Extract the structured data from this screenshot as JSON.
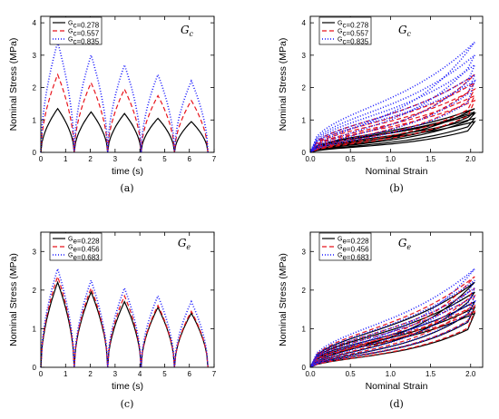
{
  "colors": {
    "black": "#000000",
    "red": "#e8141c",
    "blue": "#1a1aff"
  },
  "chart_data": [
    {
      "id": "a",
      "type": "line",
      "mode": "time",
      "caption": "(a)",
      "title": "G_c",
      "xlabel": "time (s)",
      "ylabel": "Nominal Stress (MPa)",
      "xlim": [
        0,
        7
      ],
      "ylim": [
        0,
        4.2
      ],
      "xticks": [
        0,
        1,
        2,
        3,
        4,
        5,
        6,
        7
      ],
      "yticks": [
        0,
        1,
        2,
        3,
        4
      ],
      "legend_position": "top-left",
      "series": [
        {
          "name": "G_c=0.278",
          "peaks": [
            1.35,
            1.25,
            1.2,
            1.05,
            0.95
          ],
          "color": "#000000",
          "dash": ""
        },
        {
          "name": "G_c=0.557",
          "peaks": [
            2.4,
            2.15,
            1.95,
            1.75,
            1.6
          ],
          "color": "#e8141c",
          "dash": "5,3"
        },
        {
          "name": "G_c=0.835",
          "peaks": [
            3.4,
            3.0,
            2.7,
            2.4,
            2.2
          ],
          "color": "#1a1aff",
          "dash": "1,2"
        }
      ]
    },
    {
      "id": "b",
      "type": "line",
      "mode": "strain",
      "caption": "(b)",
      "title": "G_c",
      "xlabel": "Nominal Strain",
      "ylabel": "Nominal Stress (MPa)",
      "xlim": [
        0,
        2.15
      ],
      "ylim": [
        0,
        4.2
      ],
      "xticks": [
        0,
        0.5,
        1,
        1.5,
        2
      ],
      "xticklabels": [
        "0.0",
        "0.5",
        "1.0",
        "1.5",
        "2.0"
      ],
      "yticks": [
        0,
        1,
        2,
        3,
        4
      ],
      "legend_position": "top-left",
      "series": [
        {
          "name": "G_c=0.278",
          "peaks": [
            1.35,
            1.25,
            1.2,
            1.05,
            0.95
          ],
          "color": "#000000",
          "dash": ""
        },
        {
          "name": "G_c=0.557",
          "peaks": [
            2.4,
            2.15,
            1.95,
            1.75,
            1.6
          ],
          "color": "#e8141c",
          "dash": "5,3"
        },
        {
          "name": "G_c=0.835",
          "peaks": [
            3.4,
            3.0,
            2.7,
            2.4,
            2.2
          ],
          "color": "#1a1aff",
          "dash": "1,2"
        }
      ]
    },
    {
      "id": "c",
      "type": "line",
      "mode": "time",
      "caption": "(c)",
      "title": "G_e",
      "xlabel": "time (s)",
      "ylabel": "Nominal Stress (MPa)",
      "xlim": [
        0,
        7
      ],
      "ylim": [
        0,
        3.5
      ],
      "xticks": [
        0,
        1,
        2,
        3,
        4,
        5,
        6,
        7
      ],
      "yticks": [
        0,
        1,
        2,
        3
      ],
      "legend_position": "top-left",
      "series": [
        {
          "name": "G_e=0.228",
          "peaks": [
            2.2,
            1.95,
            1.7,
            1.55,
            1.4
          ],
          "color": "#000000",
          "dash": ""
        },
        {
          "name": "G_e=0.456",
          "peaks": [
            2.35,
            2.05,
            1.85,
            1.6,
            1.45
          ],
          "color": "#e8141c",
          "dash": "5,3"
        },
        {
          "name": "G_e=0.683",
          "peaks": [
            2.55,
            2.25,
            2.05,
            1.85,
            1.7
          ],
          "color": "#1a1aff",
          "dash": "1,2"
        }
      ]
    },
    {
      "id": "d",
      "type": "line",
      "mode": "strain",
      "caption": "(d)",
      "title": "G_e",
      "xlabel": "Nominal Strain",
      "ylabel": "Nominal Stress (MPa)",
      "xlim": [
        0,
        2.15
      ],
      "ylim": [
        0,
        3.5
      ],
      "xticks": [
        0,
        0.5,
        1,
        1.5,
        2
      ],
      "xticklabels": [
        "0.0",
        "0.5",
        "1.0",
        "1.5",
        "2.0"
      ],
      "yticks": [
        0,
        1,
        2,
        3
      ],
      "legend_position": "top-left",
      "series": [
        {
          "name": "G_e=0.228",
          "peaks": [
            2.2,
            1.95,
            1.7,
            1.55,
            1.4
          ],
          "color": "#000000",
          "dash": ""
        },
        {
          "name": "G_e=0.456",
          "peaks": [
            2.35,
            2.05,
            1.85,
            1.6,
            1.45
          ],
          "color": "#e8141c",
          "dash": "5,3"
        },
        {
          "name": "G_e=0.683",
          "peaks": [
            2.55,
            2.25,
            2.05,
            1.85,
            1.7
          ],
          "color": "#1a1aff",
          "dash": "1,2"
        }
      ]
    }
  ]
}
